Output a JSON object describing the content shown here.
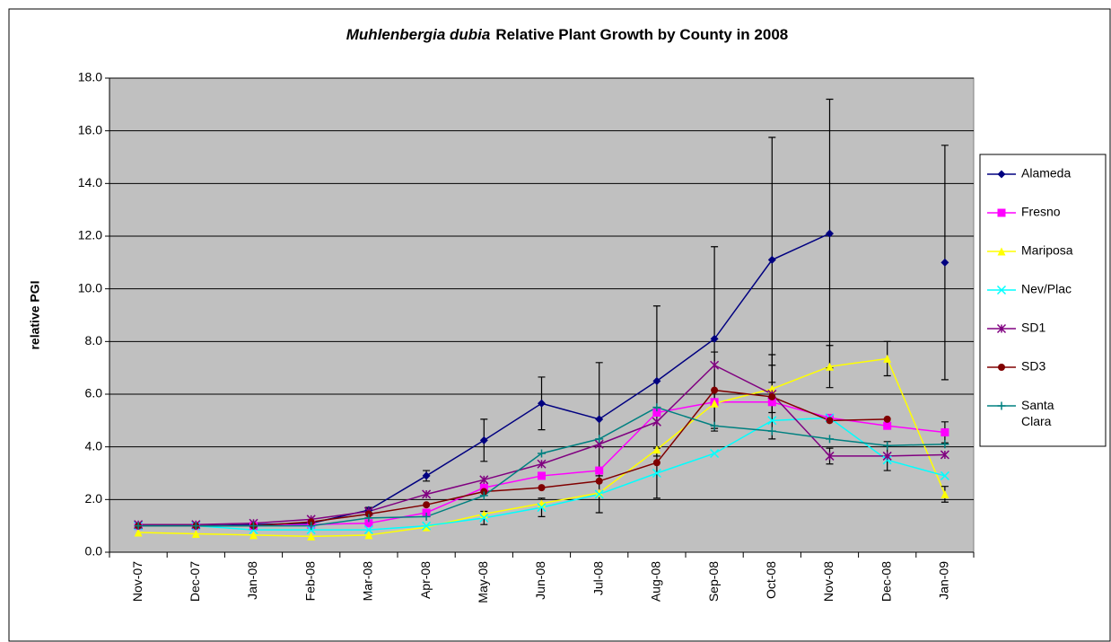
{
  "chart_data": {
    "type": "line",
    "title_species": "Muhlenbergia dubia",
    "title": "Relative Plant Growth by County in 2008",
    "y_label": "relative PGI",
    "categories": [
      "Nov-07",
      "Dec-07",
      "Jan-08",
      "Feb-08",
      "Mar-08",
      "Apr-08",
      "May-08",
      "Jun-08",
      "Jul-08",
      "Aug-08",
      "Sep-08",
      "Oct-08",
      "Nov-08",
      "Dec-08",
      "Jan-09"
    ],
    "ylim": [
      0,
      18
    ],
    "yticks": [
      {
        "value": 0,
        "label": "0.0"
      },
      {
        "value": 2,
        "label": "2.0"
      },
      {
        "value": 4,
        "label": "4.0"
      },
      {
        "value": 6,
        "label": "6.0"
      },
      {
        "value": 8,
        "label": "8.0"
      },
      {
        "value": 10,
        "label": "10.0"
      },
      {
        "value": 12,
        "label": "12.0"
      },
      {
        "value": 14,
        "label": "14.0"
      },
      {
        "value": 16,
        "label": "16.0"
      },
      {
        "value": 18,
        "label": "18.0"
      }
    ],
    "grid": true,
    "legend": "right",
    "background": "#c0c0c0",
    "series": [
      {
        "name": "Alameda",
        "color": "#000080",
        "marker": "diamond",
        "values": [
          1.0,
          1.0,
          1.05,
          1.1,
          1.6,
          2.9,
          4.25,
          5.65,
          5.05,
          6.5,
          8.1,
          11.1,
          12.1,
          null,
          11.0
        ],
        "errors": [
          null,
          null,
          null,
          null,
          0.1,
          0.2,
          0.8,
          1.0,
          2.15,
          2.85,
          3.5,
          4.65,
          5.1,
          null,
          4.45
        ]
      },
      {
        "name": "Fresno",
        "color": "#ff00ff",
        "marker": "square",
        "values": [
          1.0,
          1.0,
          1.0,
          1.05,
          1.1,
          1.5,
          2.45,
          2.9,
          3.1,
          5.3,
          5.7,
          5.7,
          5.1,
          4.8,
          4.55
        ],
        "errors": [
          null,
          null,
          null,
          null,
          null,
          null,
          null,
          null,
          null,
          null,
          null,
          null,
          null,
          null,
          0.4
        ]
      },
      {
        "name": "Mariposa",
        "color": "#ffff00",
        "marker": "triangle",
        "values": [
          0.75,
          0.7,
          0.65,
          0.6,
          0.65,
          0.95,
          1.45,
          1.85,
          2.25,
          3.9,
          5.65,
          6.2,
          7.05,
          7.35,
          2.2
        ],
        "errors": [
          null,
          null,
          null,
          null,
          null,
          null,
          null,
          null,
          null,
          null,
          null,
          0.9,
          0.8,
          0.65,
          0.3
        ]
      },
      {
        "name": "Nev/Plac",
        "color": "#00ffff",
        "marker": "x",
        "values": [
          1.0,
          1.0,
          0.85,
          0.85,
          0.85,
          1.0,
          1.3,
          1.7,
          2.2,
          3.0,
          3.75,
          5.0,
          5.1,
          3.5,
          2.9
        ],
        "errors": [
          null,
          null,
          null,
          null,
          null,
          null,
          0.25,
          0.35,
          0.7,
          0.95,
          null,
          null,
          null,
          null,
          null
        ]
      },
      {
        "name": "SD1",
        "color": "#800080",
        "marker": "star",
        "values": [
          1.05,
          1.05,
          1.1,
          1.25,
          1.55,
          2.2,
          2.75,
          3.35,
          4.1,
          4.95,
          7.1,
          6.0,
          3.65,
          3.65,
          3.7
        ],
        "errors": [
          null,
          null,
          null,
          null,
          null,
          null,
          null,
          null,
          null,
          null,
          null,
          null,
          0.3,
          0.55,
          null
        ]
      },
      {
        "name": "SD3",
        "color": "#800000",
        "marker": "circle",
        "values": [
          1.0,
          1.0,
          1.0,
          1.15,
          1.45,
          1.8,
          2.3,
          2.45,
          2.7,
          3.4,
          6.15,
          5.9,
          5.0,
          5.05,
          null
        ],
        "errors": [
          null,
          null,
          null,
          null,
          null,
          null,
          null,
          null,
          null,
          null,
          1.45,
          1.6,
          null,
          null,
          null
        ]
      },
      {
        "name": "Santa Clara",
        "color": "#008080",
        "marker": "plus",
        "values": [
          1.0,
          1.0,
          1.0,
          1.0,
          1.3,
          1.35,
          2.15,
          3.75,
          4.3,
          5.5,
          4.8,
          4.6,
          4.3,
          4.05,
          4.1
        ],
        "errors": [
          null,
          null,
          null,
          null,
          null,
          null,
          null,
          null,
          null,
          null,
          null,
          null,
          null,
          null,
          null
        ]
      }
    ]
  }
}
